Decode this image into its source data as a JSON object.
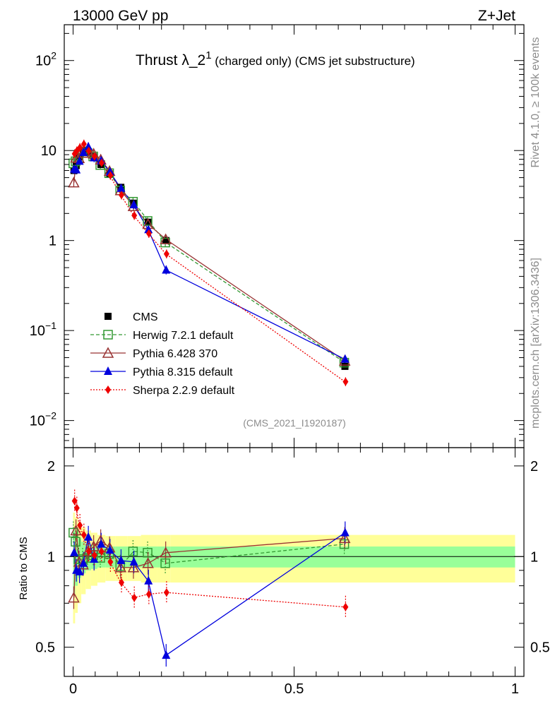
{
  "header": {
    "left": "13000 GeV pp",
    "right": "Z+Jet"
  },
  "side_labels": {
    "rivet": "Rivet 4.1.0, ≥ 100k events",
    "mcplots": "mcplots.cern.ch [arXiv:1306.3436]"
  },
  "chart_data": {
    "type": "line",
    "title": "Thrust λ_2¹ (charged only) (CMS jet substructure)",
    "title_parts": {
      "main": "Thrust λ_2",
      "sup": "1",
      "rest": " (charged only) (CMS jet substructure)"
    },
    "analysis_id": "(CMS_2021_I1920187)",
    "xlabel": "",
    "ylabel": "",
    "ratio_ylabel": "Ratio to CMS",
    "xlim": [
      -0.02,
      1.02
    ],
    "ylim_log": [
      0.005,
      250
    ],
    "ratio_ylim": [
      0.4,
      2.3
    ],
    "x_ticks": [
      {
        "v": 0,
        "label": "0"
      },
      {
        "v": 0.5,
        "label": "0.5"
      },
      {
        "v": 1,
        "label": "1"
      }
    ],
    "y_ticks": [
      {
        "v": 0.01,
        "base": "10",
        "exp": "−2"
      },
      {
        "v": 0.1,
        "base": "10",
        "exp": "−1"
      },
      {
        "v": 1,
        "base": "1",
        "exp": ""
      },
      {
        "v": 10,
        "base": "10",
        "exp": ""
      },
      {
        "v": 100,
        "base": "10",
        "exp": "2"
      }
    ],
    "ratio_ticks": [
      {
        "v": 0.5,
        "label": "0.5"
      },
      {
        "v": 1,
        "label": "1"
      },
      {
        "v": 2,
        "label": "2"
      }
    ],
    "x": [
      0.002,
      0.007,
      0.014,
      0.023,
      0.034,
      0.047,
      0.063,
      0.083,
      0.108,
      0.137,
      0.17,
      0.21,
      0.615
    ],
    "data": {
      "name": "CMS",
      "values": [
        6.0,
        6.8,
        8.5,
        10.0,
        9.5,
        8.5,
        7.0,
        5.5,
        3.9,
        2.6,
        1.6,
        1.0,
        0.04
      ],
      "band_outer": [
        0.4,
        0.35,
        0.3,
        0.25,
        0.22,
        0.2,
        0.18,
        0.17,
        0.17,
        0.17,
        0.18,
        0.18,
        0.18
      ],
      "band_inner": [
        0.25,
        0.2,
        0.15,
        0.12,
        0.1,
        0.09,
        0.08,
        0.08,
        0.08,
        0.08,
        0.08,
        0.08,
        0.08
      ]
    },
    "series": [
      {
        "name": "Herwig 7.2.1 default",
        "color": "#339933",
        "marker": "open-square",
        "values": [
          7.2,
          7.6,
          8.3,
          9.8,
          9.4,
          8.6,
          6.9,
          5.6,
          3.6,
          2.7,
          1.65,
          0.95,
          0.044
        ],
        "ratio": [
          1.2,
          1.12,
          0.98,
          0.98,
          0.99,
          1.01,
          0.99,
          1.02,
          0.93,
          1.04,
          1.03,
          0.95,
          1.1
        ]
      },
      {
        "name": "Pythia 6.428 370",
        "color": "#993333",
        "marker": "open-triangle",
        "values": [
          4.4,
          8.3,
          8.2,
          9.4,
          9.9,
          9.2,
          7.9,
          5.9,
          3.6,
          2.4,
          1.52,
          1.03,
          0.046
        ],
        "ratio": [
          0.73,
          1.22,
          0.96,
          0.94,
          1.04,
          1.08,
          1.13,
          1.07,
          0.92,
          0.92,
          0.95,
          1.03,
          1.15
        ]
      },
      {
        "name": "Pythia 8.315 default",
        "color": "#0000dd",
        "marker": "filled-triangle",
        "values": [
          6.2,
          6.1,
          7.6,
          9.5,
          11.0,
          8.3,
          7.7,
          5.8,
          3.8,
          2.5,
          1.32,
          0.47,
          0.048
        ],
        "ratio": [
          1.03,
          0.9,
          0.89,
          0.95,
          1.16,
          0.98,
          1.1,
          1.05,
          0.97,
          0.96,
          0.83,
          0.47,
          1.2
        ]
      },
      {
        "name": "Sherpa 2.2.9 default",
        "color": "#ee0000",
        "marker": "filled-diamond",
        "values": [
          9.2,
          9.9,
          10.8,
          11.8,
          9.9,
          8.6,
          7.3,
          5.3,
          3.2,
          1.9,
          1.2,
          0.71,
          0.027
        ],
        "ratio": [
          1.53,
          1.45,
          1.27,
          1.18,
          1.04,
          1.01,
          1.04,
          0.96,
          0.82,
          0.73,
          0.75,
          0.76,
          0.68
        ]
      }
    ]
  },
  "colors": {
    "band_outer": "#ffff99",
    "band_inner": "#99ff99"
  }
}
